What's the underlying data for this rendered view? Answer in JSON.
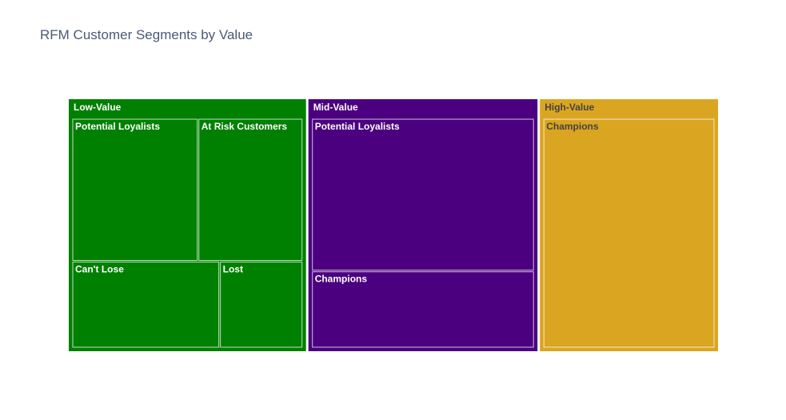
{
  "chart_data": {
    "type": "treemap",
    "title": "RFM Customer Segments by Value",
    "groups": [
      {
        "name": "Low-Value",
        "color": "#008000",
        "label_color": "#ffffff",
        "children": [
          {
            "name": "Potential Loyalists",
            "value": 27.7
          },
          {
            "name": "At Risk Customers",
            "value": 23.0
          },
          {
            "name": "Can't Lose",
            "value": 19.7
          },
          {
            "name": "Lost",
            "value": 11.1
          }
        ]
      },
      {
        "name": "Mid-Value",
        "color": "#4b0080",
        "label_color": "#ffffff",
        "children": [
          {
            "name": "Potential Loyalists",
            "value": 52.3
          },
          {
            "name": "Champions",
            "value": 26.4
          }
        ]
      },
      {
        "name": "High-Value",
        "color": "#daa520",
        "label_color": "#444444",
        "children": [
          {
            "name": "Champions",
            "value": 61.2
          }
        ]
      }
    ]
  }
}
